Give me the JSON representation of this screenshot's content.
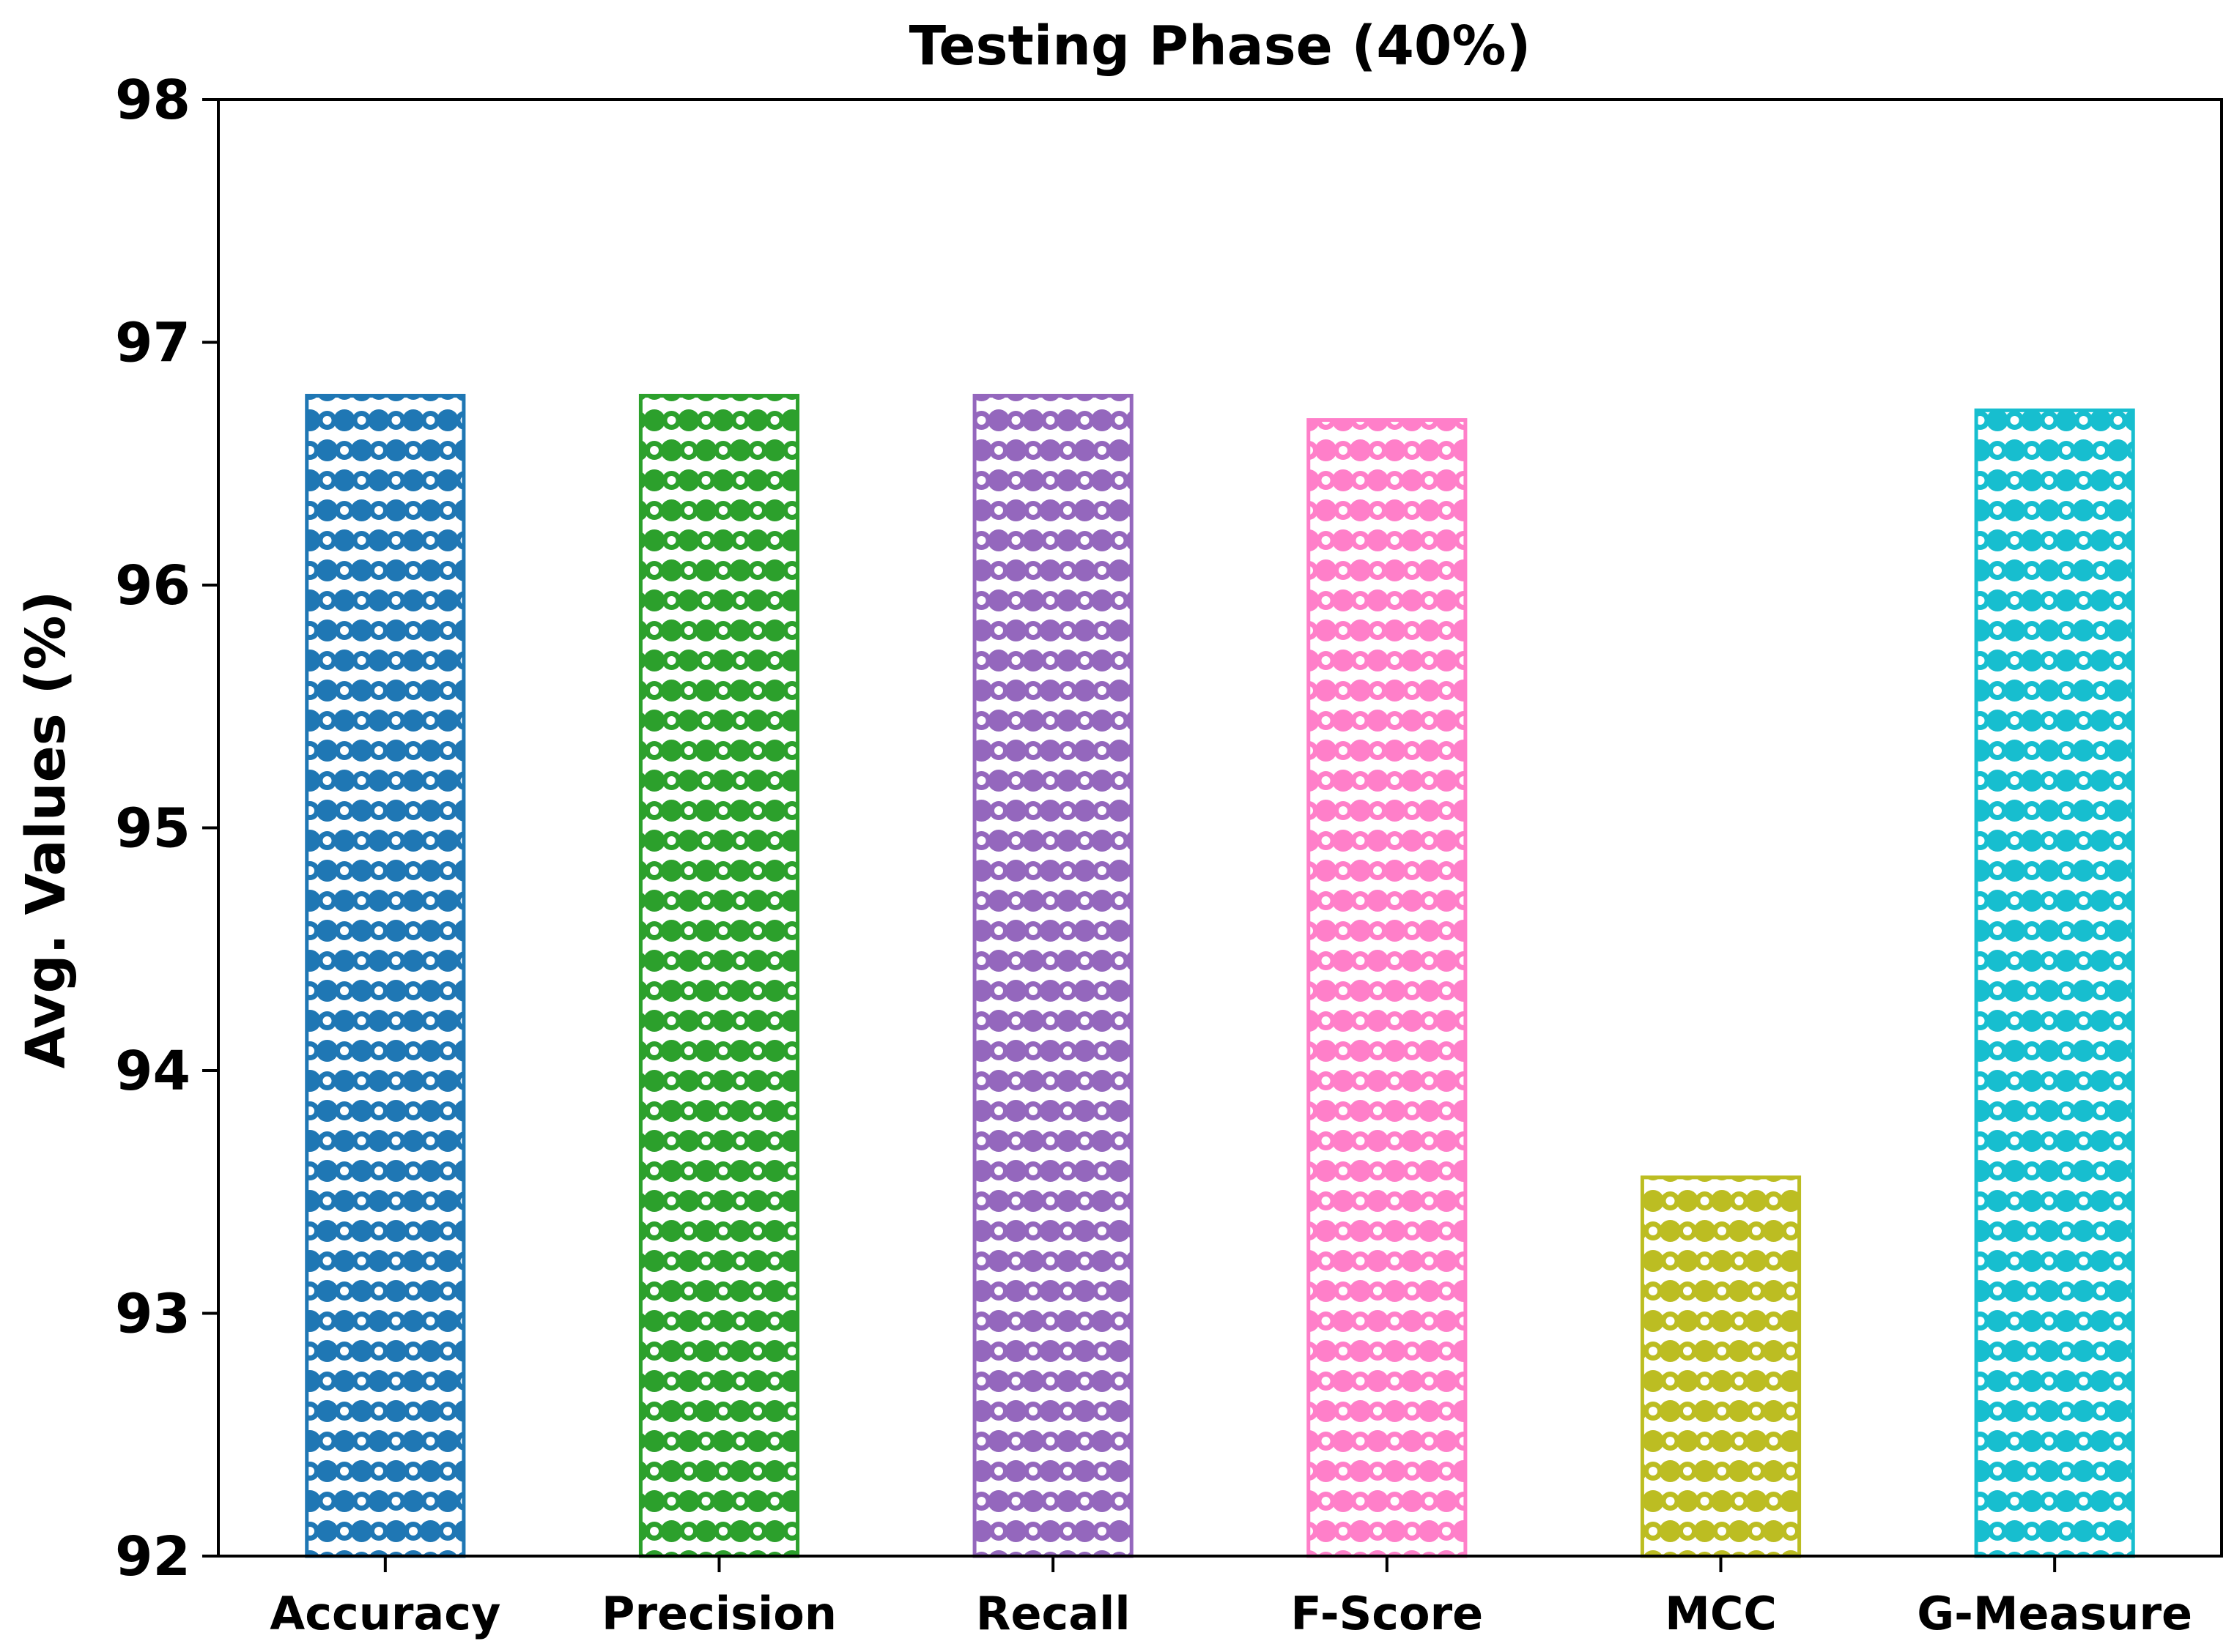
{
  "chart_data": {
    "type": "bar",
    "title": "Testing Phase (40%)",
    "xlabel": "",
    "ylabel": "Avg. Values (%)",
    "ylim": [
      92,
      98
    ],
    "yticks": [
      "92",
      "93",
      "94",
      "95",
      "96",
      "97",
      "98"
    ],
    "categories": [
      "Accuracy",
      "Precision",
      "Recall",
      "F-Score",
      "MCC",
      "G-Measure"
    ],
    "values": [
      96.78,
      96.78,
      96.78,
      96.68,
      93.56,
      96.72
    ],
    "colors": [
      "#1f77b4",
      "#2ca02c",
      "#9467bd",
      "#ff7fc9",
      "#bcbd22",
      "#17becf"
    ],
    "hatch": "dotted-circles",
    "grid": false
  }
}
